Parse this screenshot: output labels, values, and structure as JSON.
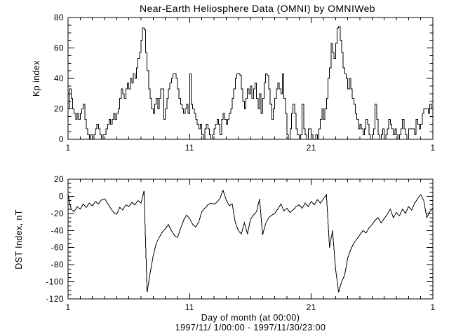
{
  "title": "Near-Earth Heliosphere Data (OMNI) by OMNIWeb",
  "footer": {
    "xaxis_label": "Day of month (at 00:00)",
    "date_range": "1997/11/ 1/00:00 - 1997/11/30/23:00"
  },
  "colors": {
    "background": "#ffffff",
    "line": "#000000",
    "text": "#000000"
  },
  "chart_data": [
    {
      "type": "line",
      "name": "Kp index",
      "panel": "top",
      "ylabel": "Kp index",
      "step": true,
      "grid": false,
      "legend": "none",
      "x_start_day": 1,
      "x_step_days": 0.125,
      "xlim": [
        1,
        31
      ],
      "ylim": [
        0,
        80
      ],
      "xticks": [
        1,
        11,
        21,
        31
      ],
      "xtick_labels": [
        "1",
        "11",
        "21",
        "1"
      ],
      "yticks": [
        0,
        20,
        40,
        60,
        80
      ],
      "ytick_labels": [
        "0",
        "20",
        "40",
        "60",
        "80"
      ],
      "minor_x_step": 1,
      "minor_y_step": 5,
      "values": [
        20,
        33,
        27,
        20,
        17,
        13,
        17,
        13,
        17,
        20,
        23,
        13,
        7,
        3,
        0,
        3,
        0,
        3,
        7,
        10,
        7,
        3,
        0,
        3,
        3,
        7,
        10,
        13,
        10,
        13,
        17,
        13,
        17,
        20,
        27,
        33,
        30,
        27,
        33,
        37,
        33,
        40,
        37,
        43,
        40,
        47,
        53,
        57,
        65,
        73,
        72,
        57,
        45,
        33,
        27,
        20,
        17,
        23,
        27,
        20,
        27,
        33,
        33,
        13,
        20,
        27,
        33,
        37,
        40,
        43,
        43,
        40,
        33,
        27,
        23,
        20,
        17,
        20,
        23,
        17,
        43,
        23,
        20,
        17,
        13,
        10,
        7,
        10,
        3,
        0,
        7,
        10,
        7,
        3,
        0,
        3,
        7,
        10,
        13,
        10,
        3,
        13,
        17,
        13,
        10,
        13,
        17,
        20,
        27,
        33,
        40,
        43,
        43,
        42,
        33,
        25,
        20,
        27,
        33,
        30,
        35,
        27,
        33,
        37,
        27,
        20,
        30,
        17,
        27,
        37,
        43,
        42,
        33,
        23,
        13,
        20,
        27,
        33,
        37,
        33,
        30,
        43,
        27,
        17,
        3,
        0,
        7,
        17,
        23,
        17,
        7,
        3,
        0,
        3,
        23,
        7,
        3,
        0,
        7,
        7,
        3,
        0,
        0,
        3,
        0,
        7,
        13,
        20,
        13,
        20,
        27,
        40,
        47,
        63,
        57,
        53,
        63,
        73,
        74,
        65,
        57,
        47,
        43,
        40,
        33,
        40,
        33,
        27,
        23,
        17,
        13,
        7,
        10,
        7,
        3,
        7,
        13,
        10,
        3,
        0,
        3,
        7,
        23,
        13,
        3,
        0,
        3,
        7,
        0,
        3,
        7,
        13,
        10,
        7,
        3,
        7,
        3,
        0,
        3,
        7,
        13,
        7,
        3,
        0,
        7,
        7,
        7,
        7,
        3,
        13,
        10,
        7,
        10,
        17,
        20,
        20,
        20,
        17,
        23,
        20
      ]
    },
    {
      "type": "line",
      "name": "DST Index",
      "panel": "bottom",
      "ylabel": "DST Index, nT",
      "step": false,
      "grid": false,
      "legend": "none",
      "x_start_day": 1,
      "x_step_days": 0.25,
      "xlim": [
        1,
        31
      ],
      "ylim": [
        -120,
        20
      ],
      "xticks": [
        1,
        11,
        21,
        31
      ],
      "xtick_labels": [
        "1",
        "11",
        "21",
        "1"
      ],
      "yticks": [
        20,
        0,
        -20,
        -40,
        -60,
        -80,
        -100,
        -120
      ],
      "ytick_labels": [
        "20",
        "0",
        "-20",
        "-40",
        "-60",
        "-80",
        "-100",
        "-120"
      ],
      "minor_x_step": 1,
      "minor_y_step": 5,
      "values": [
        2,
        -15,
        -18,
        -12,
        -15,
        -9,
        -13,
        -8,
        -11,
        -6,
        -9,
        -4,
        -3,
        -8,
        -14,
        -19,
        -21,
        -13,
        -16,
        -10,
        -12,
        -7,
        -10,
        -5,
        -8,
        6,
        -112,
        -90,
        -70,
        -55,
        -48,
        -42,
        -38,
        -33,
        -40,
        -46,
        -48,
        -38,
        -28,
        -22,
        -26,
        -33,
        -36,
        -30,
        -18,
        -14,
        -10,
        -8,
        -9,
        -7,
        -2,
        7,
        -4,
        -11,
        -9,
        -30,
        -40,
        -44,
        -31,
        -44,
        -27,
        -22,
        -18,
        -3,
        -45,
        -32,
        -25,
        -22,
        -20,
        -15,
        -9,
        -17,
        -14,
        -19,
        -16,
        -12,
        -10,
        -14,
        -8,
        -12,
        -6,
        -10,
        -4,
        -8,
        -3,
        2,
        -60,
        -40,
        -85,
        -112,
        -100,
        -92,
        -72,
        -62,
        -55,
        -50,
        -45,
        -40,
        -43,
        -37,
        -33,
        -28,
        -25,
        -31,
        -26,
        -21,
        -15,
        -25,
        -19,
        -23,
        -15,
        -20,
        -12,
        -16,
        -8,
        -3,
        2,
        -5,
        -25,
        -18,
        -14
      ]
    }
  ]
}
